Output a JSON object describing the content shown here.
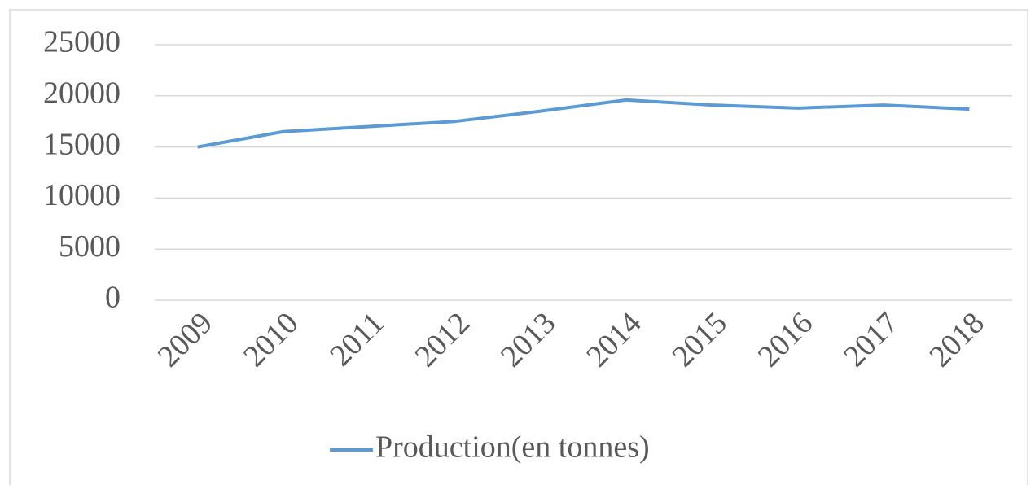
{
  "chart_data": {
    "type": "line",
    "categories": [
      "2009",
      "2010",
      "2011",
      "2012",
      "2013",
      "2014",
      "2015",
      "2016",
      "2017",
      "2018"
    ],
    "series": [
      {
        "name": "Production(en tonnes)",
        "color": "#5b9bd5",
        "values": [
          15000,
          16500,
          17000,
          17500,
          18500,
          19600,
          19100,
          18800,
          19100,
          18700
        ]
      }
    ],
    "ylim": [
      0,
      25000
    ],
    "yticks": [
      0,
      5000,
      10000,
      15000,
      20000,
      25000
    ],
    "grid": true,
    "legend": "bottom"
  }
}
